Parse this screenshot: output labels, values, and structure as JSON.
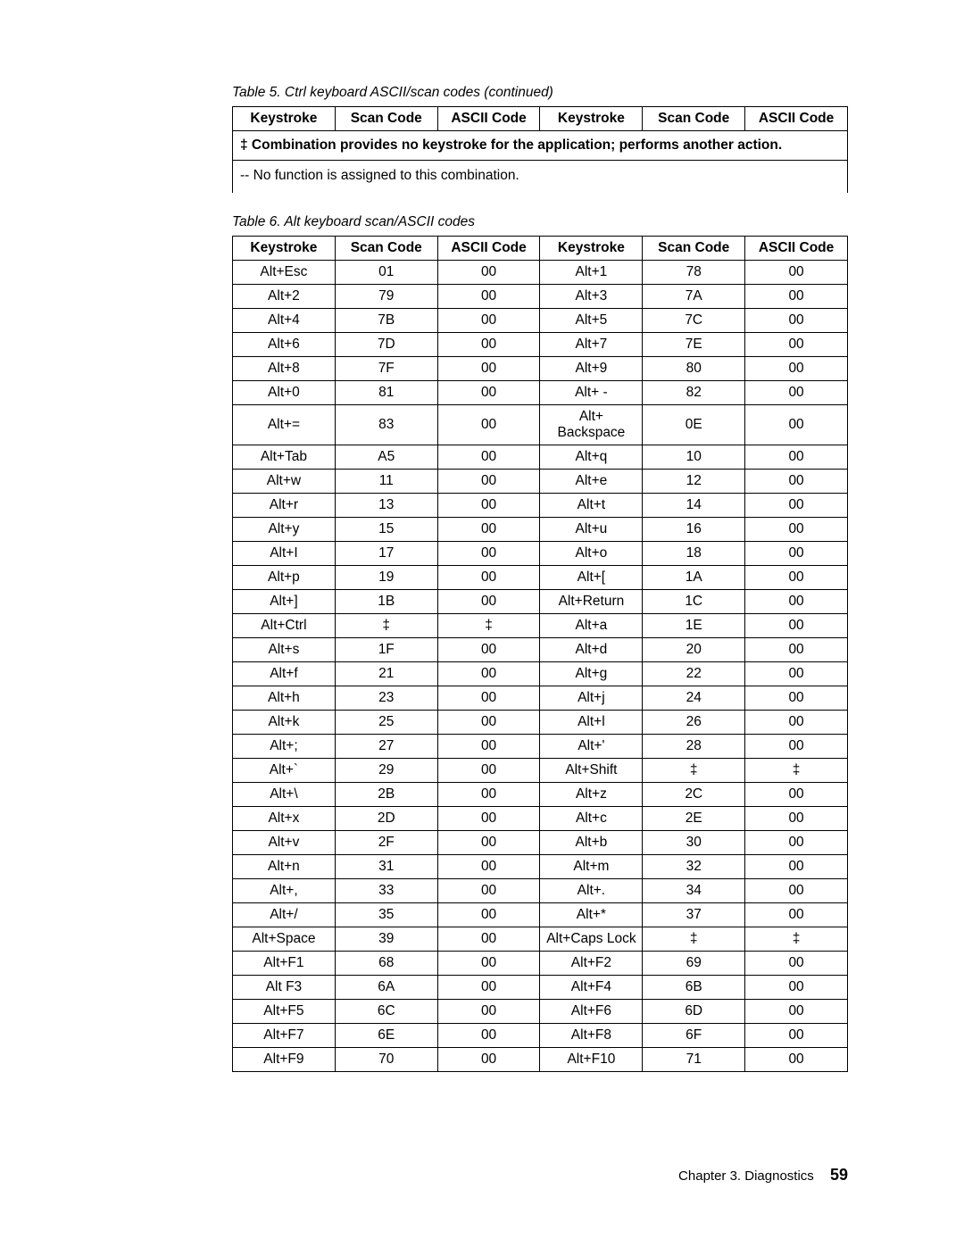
{
  "table5": {
    "caption": "Table 5. Ctrl keyboard ASCII/scan codes  (continued)",
    "headers": [
      "Keystroke",
      "Scan Code",
      "ASCII Code",
      "Keystroke",
      "Scan Code",
      "ASCII Code"
    ],
    "note1": "‡ Combination provides no keystroke for the application; performs another action.",
    "note2": "-- No function is assigned to this combination."
  },
  "table6": {
    "caption": "Table 6. Alt keyboard scan/ASCII codes",
    "headers": [
      "Keystroke",
      "Scan Code",
      "ASCII Code",
      "Keystroke",
      "Scan Code",
      "ASCII Code"
    ],
    "rows": [
      [
        "Alt+Esc",
        "01",
        "00",
        "Alt+1",
        "78",
        "00"
      ],
      [
        "Alt+2",
        "79",
        "00",
        "Alt+3",
        "7A",
        "00"
      ],
      [
        "Alt+4",
        "7B",
        "00",
        "Alt+5",
        "7C",
        "00"
      ],
      [
        "Alt+6",
        "7D",
        "00",
        "Alt+7",
        "7E",
        "00"
      ],
      [
        "Alt+8",
        "7F",
        "00",
        "Alt+9",
        "80",
        "00"
      ],
      [
        "Alt+0",
        "81",
        "00",
        "Alt+ -",
        "82",
        "00"
      ],
      [
        "Alt+=",
        "83",
        "00",
        "Alt+ Backspace",
        "0E",
        "00"
      ],
      [
        "Alt+Tab",
        "A5",
        "00",
        "Alt+q",
        "10",
        "00"
      ],
      [
        "Alt+w",
        "11",
        "00",
        "Alt+e",
        "12",
        "00"
      ],
      [
        "Alt+r",
        "13",
        "00",
        "Alt+t",
        "14",
        "00"
      ],
      [
        "Alt+y",
        "15",
        "00",
        "Alt+u",
        "16",
        "00"
      ],
      [
        "Alt+I",
        "17",
        "00",
        "Alt+o",
        "18",
        "00"
      ],
      [
        "Alt+p",
        "19",
        "00",
        "Alt+[",
        "1A",
        "00"
      ],
      [
        "Alt+]",
        "1B",
        "00",
        "Alt+Return",
        "1C",
        "00"
      ],
      [
        "Alt+Ctrl",
        "‡",
        "‡",
        "Alt+a",
        "1E",
        "00"
      ],
      [
        "Alt+s",
        "1F",
        "00",
        "Alt+d",
        "20",
        "00"
      ],
      [
        "Alt+f",
        "21",
        "00",
        "Alt+g",
        "22",
        "00"
      ],
      [
        "Alt+h",
        "23",
        "00",
        "Alt+j",
        "24",
        "00"
      ],
      [
        "Alt+k",
        "25",
        "00",
        "Alt+l",
        "26",
        "00"
      ],
      [
        "Alt+;",
        "27",
        "00",
        "Alt+'",
        "28",
        "00"
      ],
      [
        "Alt+`",
        "29",
        "00",
        "Alt+Shift",
        "‡",
        "‡"
      ],
      [
        "Alt+\\",
        "2B",
        "00",
        "Alt+z",
        "2C",
        "00"
      ],
      [
        "Alt+x",
        "2D",
        "00",
        "Alt+c",
        "2E",
        "00"
      ],
      [
        "Alt+v",
        "2F",
        "00",
        "Alt+b",
        "30",
        "00"
      ],
      [
        "Alt+n",
        "31",
        "00",
        "Alt+m",
        "32",
        "00"
      ],
      [
        "Alt+,",
        "33",
        "00",
        "Alt+.",
        "34",
        "00"
      ],
      [
        "Alt+/",
        "35",
        "00",
        "Alt+*",
        "37",
        "00"
      ],
      [
        "Alt+Space",
        "39",
        "00",
        "Alt+Caps Lock",
        "‡",
        "‡"
      ],
      [
        "Alt+F1",
        "68",
        "00",
        "Alt+F2",
        "69",
        "00"
      ],
      [
        "Alt F3",
        "6A",
        "00",
        "Alt+F4",
        "6B",
        "00"
      ],
      [
        "Alt+F5",
        "6C",
        "00",
        "Alt+F6",
        "6D",
        "00"
      ],
      [
        "Alt+F7",
        "6E",
        "00",
        "Alt+F8",
        "6F",
        "00"
      ],
      [
        "Alt+F9",
        "70",
        "00",
        "Alt+F10",
        "71",
        "00"
      ]
    ]
  },
  "footer": {
    "chapter": "Chapter 3. Diagnostics",
    "page": "59"
  }
}
